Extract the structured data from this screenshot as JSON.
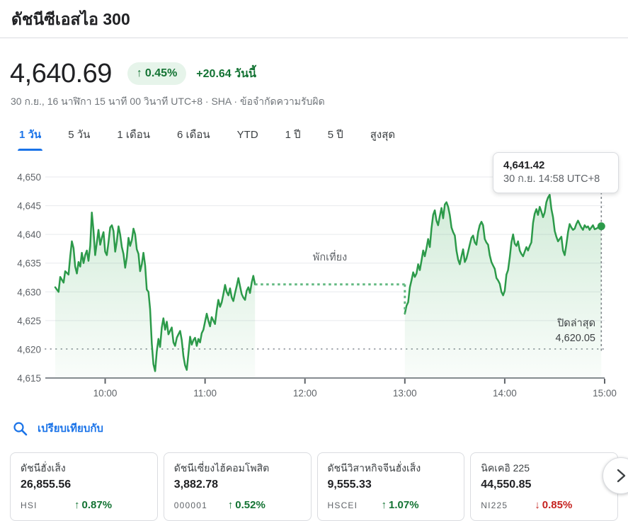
{
  "header": {
    "title": "ดัชนีซีเอสไอ 300",
    "price": "4,640.69",
    "change_arrow": "↑",
    "change_percent": "0.45%",
    "change_today": "+20.64 วันนี้",
    "timestamp": "30 ก.ย., 16 นาฬิกา 15 นาที 00 วินาที UTC+8 · SHA ·",
    "disclaimer": "ข้อจำกัดความรับผิด"
  },
  "range_tabs": [
    {
      "id": "1d",
      "label": "1 วัน",
      "selected": true
    },
    {
      "id": "5d",
      "label": "5 วัน",
      "selected": false
    },
    {
      "id": "1m",
      "label": "1 เดือน",
      "selected": false
    },
    {
      "id": "6m",
      "label": "6 เดือน",
      "selected": false
    },
    {
      "id": "ytd",
      "label": "YTD",
      "selected": false
    },
    {
      "id": "1y",
      "label": "1 ปี",
      "selected": false
    },
    {
      "id": "5y",
      "label": "5 ปี",
      "selected": false
    },
    {
      "id": "max",
      "label": "สูงสุด",
      "selected": false
    }
  ],
  "chart_data": {
    "type": "area",
    "y_ticks": [
      4615,
      4620,
      4625,
      4630,
      4635,
      4640,
      4645,
      4650
    ],
    "y_range": [
      4615,
      4650
    ],
    "x_domain_times": [
      "09:30",
      "15:00"
    ],
    "x_ticks": [
      {
        "t": 30,
        "label": "10:00"
      },
      {
        "t": 90,
        "label": "11:00"
      },
      {
        "t": 150,
        "label": "12:00"
      },
      {
        "t": 210,
        "label": "13:00"
      },
      {
        "t": 270,
        "label": "14:00"
      },
      {
        "t": 330,
        "label": "15:00"
      }
    ],
    "previous_close": {
      "label": "ปิดล่าสุด",
      "value": "4,620.05",
      "numeric": 4620.05
    },
    "lunch_break": {
      "label": "พักเที่ยง",
      "t_from": 120,
      "t_to": 210,
      "level": 4631.3
    },
    "tooltip": {
      "value": "4,641.42",
      "time": "30 ก.ย. 14:58 UTC+8"
    },
    "last_point": {
      "t": 328,
      "value": 4641.42
    },
    "colors": {
      "line": "#2c9a4a",
      "fill": "#34a853",
      "lunch_dots": "#63b981",
      "prev_close_dots": "#9aa0a6",
      "cursor_dash": "#80868b",
      "grid": "#e8eaed",
      "axis": "#868b90",
      "tick_text": "#5f6368"
    },
    "sessions": [
      [
        [
          0,
          4630.8
        ],
        [
          2,
          4630.0
        ],
        [
          3,
          4632.6
        ],
        [
          5,
          4631.6
        ],
        [
          6,
          4633.6
        ],
        [
          8,
          4633.0
        ],
        [
          9,
          4636.2
        ],
        [
          10,
          4638.8
        ],
        [
          11,
          4637.6
        ],
        [
          12,
          4634.4
        ],
        [
          13,
          4633.2
        ],
        [
          14,
          4635.2
        ],
        [
          15,
          4634.4
        ],
        [
          16,
          4636.8
        ],
        [
          17,
          4635.0
        ],
        [
          18,
          4636.4
        ],
        [
          19,
          4637.2
        ],
        [
          20,
          4635.4
        ],
        [
          21,
          4638.0
        ],
        [
          22,
          4643.8
        ],
        [
          23,
          4640.6
        ],
        [
          24,
          4636.4
        ],
        [
          25,
          4638.6
        ],
        [
          26,
          4640.8
        ],
        [
          27,
          4638.2
        ],
        [
          28,
          4639.4
        ],
        [
          29,
          4640.4
        ],
        [
          30,
          4637.0
        ],
        [
          31,
          4636.4
        ],
        [
          32,
          4638.6
        ],
        [
          33,
          4641.2
        ],
        [
          34,
          4641.6
        ],
        [
          35,
          4640.6
        ],
        [
          36,
          4637.0
        ],
        [
          37,
          4638.8
        ],
        [
          38,
          4641.4
        ],
        [
          39,
          4640.0
        ],
        [
          40,
          4637.8
        ],
        [
          41,
          4636.6
        ],
        [
          42,
          4634.2
        ],
        [
          43,
          4636.0
        ],
        [
          44,
          4639.4
        ],
        [
          45,
          4638.0
        ],
        [
          46,
          4639.0
        ],
        [
          47,
          4641.0
        ],
        [
          48,
          4640.0
        ],
        [
          49,
          4637.4
        ],
        [
          50,
          4636.6
        ],
        [
          51,
          4633.6
        ],
        [
          52,
          4634.8
        ],
        [
          53,
          4636.8
        ],
        [
          54,
          4634.6
        ],
        [
          55,
          4630.4
        ],
        [
          56,
          4630.0
        ],
        [
          57,
          4627.0
        ],
        [
          58,
          4621.0
        ],
        [
          59,
          4617.4
        ],
        [
          60,
          4616.2
        ],
        [
          61,
          4619.6
        ],
        [
          62,
          4621.8
        ],
        [
          63,
          4620.4
        ],
        [
          64,
          4623.8
        ],
        [
          65,
          4625.4
        ],
        [
          66,
          4623.4
        ],
        [
          67,
          4624.8
        ],
        [
          68,
          4622.6
        ],
        [
          69,
          4623.2
        ],
        [
          70,
          4623.8
        ],
        [
          71,
          4621.2
        ],
        [
          72,
          4620.6
        ],
        [
          73,
          4622.0
        ],
        [
          74,
          4622.6
        ],
        [
          75,
          4623.2
        ],
        [
          76,
          4621.6
        ],
        [
          77,
          4618.8
        ],
        [
          78,
          4617.2
        ],
        [
          79,
          4616.4
        ],
        [
          80,
          4619.2
        ],
        [
          81,
          4622.2
        ],
        [
          82,
          4620.8
        ],
        [
          83,
          4621.6
        ],
        [
          84,
          4622.0
        ],
        [
          85,
          4620.6
        ],
        [
          86,
          4621.8
        ],
        [
          87,
          4621.2
        ],
        [
          88,
          4622.8
        ],
        [
          89,
          4623.4
        ],
        [
          90,
          4624.8
        ],
        [
          91,
          4626.2
        ],
        [
          92,
          4625.0
        ],
        [
          93,
          4624.0
        ],
        [
          94,
          4625.6
        ],
        [
          95,
          4625.0
        ],
        [
          96,
          4624.4
        ],
        [
          97,
          4626.8
        ],
        [
          98,
          4628.6
        ],
        [
          99,
          4627.4
        ],
        [
          100,
          4628.2
        ],
        [
          101,
          4629.6
        ],
        [
          102,
          4631.2
        ],
        [
          103,
          4630.0
        ],
        [
          104,
          4629.4
        ],
        [
          105,
          4630.6
        ],
        [
          106,
          4629.0
        ],
        [
          107,
          4628.4
        ],
        [
          108,
          4629.8
        ],
        [
          109,
          4631.0
        ],
        [
          110,
          4632.4
        ],
        [
          111,
          4631.0
        ],
        [
          112,
          4629.6
        ],
        [
          113,
          4629.0
        ],
        [
          114,
          4628.6
        ],
        [
          115,
          4630.2
        ],
        [
          116,
          4630.8
        ],
        [
          117,
          4629.8
        ],
        [
          118,
          4631.6
        ],
        [
          119,
          4632.8
        ],
        [
          120,
          4631.3
        ]
      ],
      [
        [
          210,
          4626.2
        ],
        [
          211,
          4627.6
        ],
        [
          212,
          4628.2
        ],
        [
          213,
          4630.8
        ],
        [
          214,
          4632.0
        ],
        [
          215,
          4633.4
        ],
        [
          216,
          4632.6
        ],
        [
          217,
          4633.2
        ],
        [
          218,
          4634.8
        ],
        [
          219,
          4633.8
        ],
        [
          220,
          4635.4
        ],
        [
          221,
          4637.2
        ],
        [
          222,
          4636.2
        ],
        [
          223,
          4637.6
        ],
        [
          224,
          4639.2
        ],
        [
          225,
          4637.8
        ],
        [
          226,
          4641.0
        ],
        [
          227,
          4643.4
        ],
        [
          228,
          4644.2
        ],
        [
          229,
          4642.4
        ],
        [
          230,
          4641.6
        ],
        [
          231,
          4643.2
        ],
        [
          232,
          4644.6
        ],
        [
          233,
          4642.8
        ],
        [
          234,
          4645.2
        ],
        [
          235,
          4645.6
        ],
        [
          236,
          4644.8
        ],
        [
          237,
          4643.4
        ],
        [
          238,
          4641.2
        ],
        [
          239,
          4640.4
        ],
        [
          240,
          4639.8
        ],
        [
          241,
          4637.2
        ],
        [
          242,
          4635.6
        ],
        [
          243,
          4634.8
        ],
        [
          244,
          4636.2
        ],
        [
          245,
          4637.4
        ],
        [
          246,
          4635.2
        ],
        [
          247,
          4635.8
        ],
        [
          248,
          4637.0
        ],
        [
          249,
          4638.2
        ],
        [
          250,
          4639.4
        ],
        [
          251,
          4639.8
        ],
        [
          252,
          4638.6
        ],
        [
          253,
          4638.2
        ],
        [
          254,
          4640.4
        ],
        [
          255,
          4641.6
        ],
        [
          256,
          4642.2
        ],
        [
          257,
          4641.6
        ],
        [
          258,
          4639.2
        ],
        [
          259,
          4638.6
        ],
        [
          260,
          4638.2
        ],
        [
          261,
          4636.4
        ],
        [
          262,
          4635.2
        ],
        [
          263,
          4634.6
        ],
        [
          264,
          4634.0
        ],
        [
          265,
          4632.4
        ],
        [
          266,
          4632.0
        ],
        [
          267,
          4631.4
        ],
        [
          268,
          4630.0
        ],
        [
          269,
          4629.4
        ],
        [
          270,
          4630.2
        ],
        [
          271,
          4633.0
        ],
        [
          272,
          4633.8
        ],
        [
          273,
          4636.0
        ],
        [
          274,
          4638.6
        ],
        [
          275,
          4640.0
        ],
        [
          276,
          4638.4
        ],
        [
          277,
          4638.0
        ],
        [
          278,
          4638.8
        ],
        [
          279,
          4637.2
        ],
        [
          280,
          4636.6
        ],
        [
          281,
          4636.2
        ],
        [
          282,
          4637.0
        ],
        [
          283,
          4637.8
        ],
        [
          284,
          4637.2
        ],
        [
          285,
          4638.0
        ],
        [
          286,
          4638.6
        ],
        [
          287,
          4642.0
        ],
        [
          288,
          4643.6
        ],
        [
          289,
          4644.4
        ],
        [
          290,
          4643.4
        ],
        [
          291,
          4644.8
        ],
        [
          292,
          4644.0
        ],
        [
          293,
          4643.0
        ],
        [
          294,
          4643.8
        ],
        [
          295,
          4645.6
        ],
        [
          296,
          4646.4
        ],
        [
          297,
          4646.9
        ],
        [
          298,
          4644.4
        ],
        [
          299,
          4643.0
        ],
        [
          300,
          4640.6
        ],
        [
          301,
          4639.6
        ],
        [
          302,
          4638.8
        ],
        [
          303,
          4639.2
        ],
        [
          304,
          4639.6
        ],
        [
          305,
          4637.2
        ],
        [
          306,
          4636.4
        ],
        [
          307,
          4638.2
        ],
        [
          308,
          4640.4
        ],
        [
          309,
          4641.8
        ],
        [
          310,
          4641.2
        ],
        [
          311,
          4640.8
        ],
        [
          312,
          4641.0
        ],
        [
          313,
          4641.8
        ],
        [
          314,
          4642.4
        ],
        [
          315,
          4641.8
        ],
        [
          316,
          4641.2
        ],
        [
          317,
          4640.8
        ],
        [
          318,
          4641.6
        ],
        [
          319,
          4641.2
        ],
        [
          320,
          4641.4
        ],
        [
          321,
          4640.8
        ],
        [
          322,
          4641.2
        ],
        [
          323,
          4641.6
        ],
        [
          324,
          4640.9
        ],
        [
          325,
          4641.0
        ],
        [
          326,
          4641.2
        ],
        [
          327,
          4641.3
        ],
        [
          328,
          4641.42
        ]
      ]
    ]
  },
  "compare": {
    "label": "เปรียบเทียบกับ",
    "cards": [
      {
        "name": "ดัชนีฮั่งเส็ง",
        "value": "26,855.56",
        "ticker": "HSI",
        "arrow": "↑",
        "change": "0.87%",
        "direction": "up"
      },
      {
        "name": "ดัชนีเซี่ยงไฮ้คอมโพสิต",
        "value": "3,882.78",
        "ticker": "000001",
        "arrow": "↑",
        "change": "0.52%",
        "direction": "up"
      },
      {
        "name": "ดัชนีวิสาหกิจจีนฮั่งเส็ง",
        "value": "9,555.33",
        "ticker": "HSCEI",
        "arrow": "↑",
        "change": "1.07%",
        "direction": "up"
      },
      {
        "name": "นิคเคอิ 225",
        "value": "44,550.85",
        "ticker": "NI225",
        "arrow": "↓",
        "change": "0.85%",
        "direction": "down"
      }
    ]
  },
  "colors": {
    "up": "#137333",
    "down": "#c5221f",
    "accent": "#1a73e8"
  }
}
